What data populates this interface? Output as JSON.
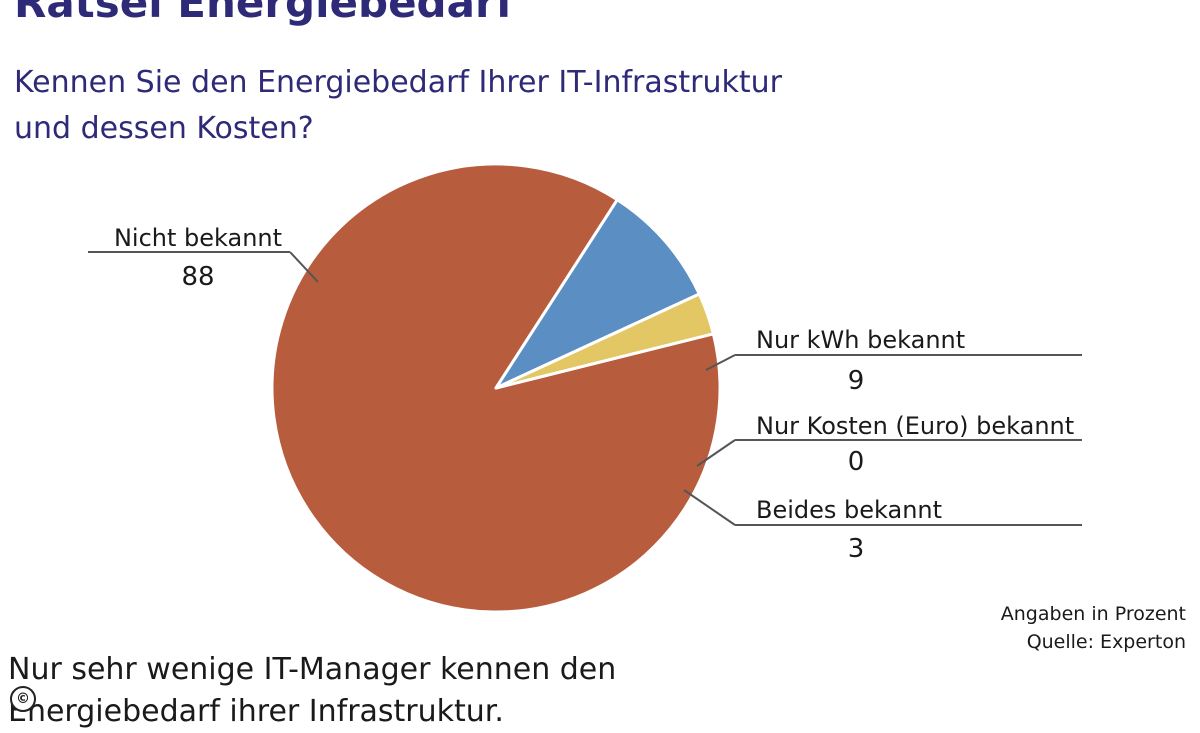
{
  "title": "Rätsel Energiebedarf",
  "subtitle": {
    "line1": "Kennen Sie den Energiebedarf Ihrer IT-Infrastruktur",
    "line2": "und dessen Kosten?"
  },
  "notes": {
    "unit": "Angaben in Prozent",
    "source": "Quelle: Experton"
  },
  "caption": {
    "line1": "Nur sehr wenige IT-Manager kennen den",
    "line2": "Energiebedarf ihrer Infrastruktur."
  },
  "copyright_symbol": "©",
  "chart_data": {
    "type": "pie",
    "title": "Rätsel Energiebedarf",
    "labels": [
      "Nicht bekannt",
      "Nur kWh bekannt",
      "Nur Kosten (Euro) bekannt",
      "Beides bekannt"
    ],
    "values": [
      88,
      9,
      0,
      3
    ],
    "value_labels": [
      "88",
      "9",
      "0",
      "3"
    ],
    "colors": [
      "#b85c3e",
      "#5b8fc4",
      "#c9c9c9",
      "#e2c764"
    ],
    "legend": "none",
    "grid": false
  }
}
